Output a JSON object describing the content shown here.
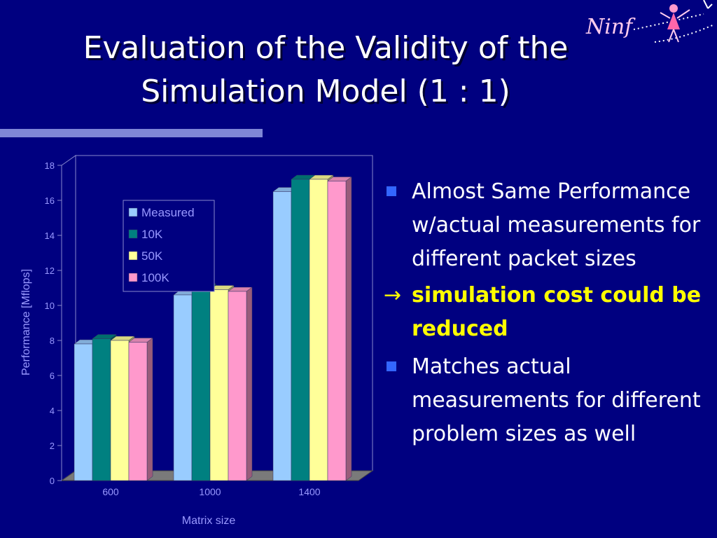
{
  "slide": {
    "title_line1": "Evaluation of the Validity of the",
    "title_line2": "Simulation Model (1 : 1)",
    "logo_text": "Ninf",
    "colors": {
      "background": "#000080",
      "highlight": "#ffff00",
      "bullet": "#3366ff",
      "rule": "#7f86d6"
    }
  },
  "bullets": [
    {
      "text": "Almost Same Performance w/actual measurements for different packet sizes"
    },
    {
      "text": "simulation cost could be reduced",
      "marker": "→"
    },
    {
      "text": "Matches actual measurements for different problem sizes as well"
    }
  ],
  "chart_data": {
    "type": "bar",
    "categories": [
      "600",
      "1000",
      "1400"
    ],
    "series": [
      {
        "name": "Measured",
        "color": "#99ccff",
        "values": [
          7.8,
          10.6,
          16.5
        ]
      },
      {
        "name": "10K",
        "color": "#008080",
        "values": [
          8.1,
          11.0,
          17.2
        ]
      },
      {
        "name": "50K",
        "color": "#ffff99",
        "values": [
          8.0,
          10.9,
          17.2
        ]
      },
      {
        "name": "100K",
        "color": "#ff99cc",
        "values": [
          7.9,
          10.8,
          17.1
        ]
      }
    ],
    "xlabel": "Matrix size",
    "ylabel": "Performance [Mflops]",
    "ylim": [
      0,
      18
    ],
    "yticks": [
      "0",
      "2",
      "4",
      "6",
      "8",
      "10",
      "12",
      "14",
      "16",
      "18"
    ],
    "legend_position": "upper-left",
    "grid": false
  }
}
